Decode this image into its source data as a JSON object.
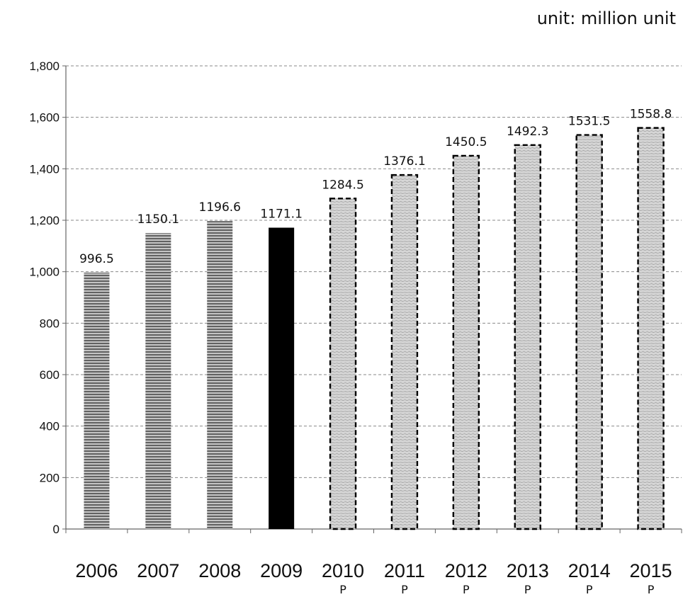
{
  "unit_label": "unit: million unit",
  "chart_data": {
    "type": "bar",
    "categories": [
      "2006",
      "2007",
      "2008",
      "2009",
      "2010",
      "2011",
      "2012",
      "2013",
      "2014",
      "2015"
    ],
    "category_sublabels": [
      "",
      "",
      "",
      "",
      "P",
      "P",
      "P",
      "P",
      "P",
      "P"
    ],
    "values": [
      996.5,
      1150.1,
      1196.6,
      1171.1,
      1284.5,
      1376.1,
      1450.5,
      1492.3,
      1531.5,
      1558.8
    ],
    "data_labels": [
      "996.5",
      "1150.1",
      "1196.6",
      "1171.1",
      "1284.5",
      "1376.1",
      "1450.5",
      "1492.3",
      "1531.5",
      "1558.8"
    ],
    "bar_styles": [
      "hatched",
      "hatched",
      "hatched",
      "solid",
      "projected",
      "projected",
      "projected",
      "projected",
      "projected",
      "projected"
    ],
    "ylim": [
      0,
      1800
    ],
    "yticks": [
      0,
      200,
      400,
      600,
      800,
      1000,
      1200,
      1400,
      1600,
      1800
    ],
    "ytick_labels": [
      "0",
      "200",
      "400",
      "600",
      "800",
      "1,000",
      "1,200",
      "1,400",
      "1,600",
      "1,800"
    ],
    "grid": true,
    "grid_style": "dashed",
    "title": "",
    "xlabel": "",
    "ylabel": "",
    "legend": "none",
    "colors": {
      "actual_bar": "#555555",
      "solid_bar": "#000000",
      "projected_fill": "#bdbdbd",
      "projected_border": "#000000",
      "grid": "#8a8a8a",
      "axis": "#666666"
    }
  }
}
